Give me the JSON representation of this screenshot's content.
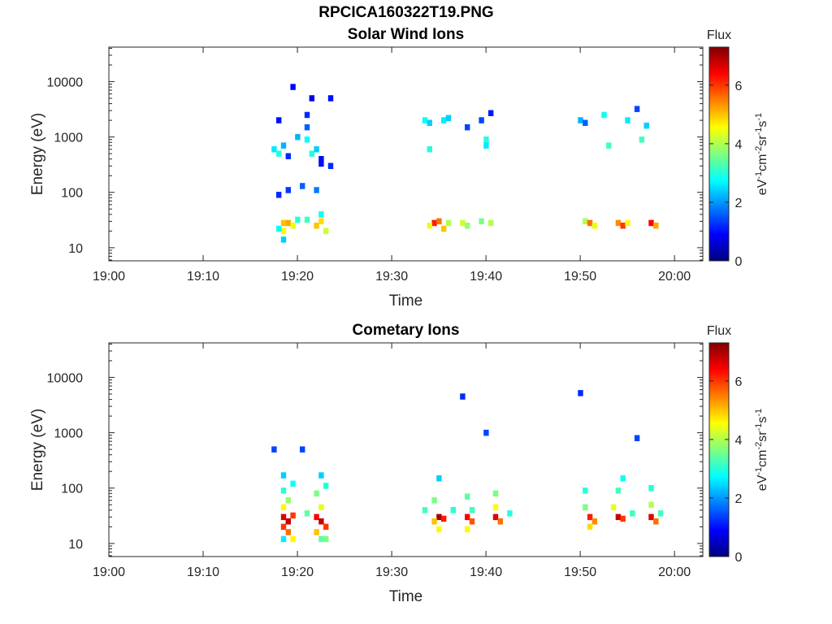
{
  "figure": {
    "filename": "RPCICA160322T19.PNG"
  },
  "chart_data": [
    {
      "type": "heatmap",
      "title": "Solar Wind Ions",
      "xlabel": "Time",
      "ylabel": "Energy (eV)",
      "x_ticks": [
        "19:00",
        "19:10",
        "19:20",
        "19:30",
        "19:40",
        "19:50",
        "20:00"
      ],
      "xlim": [
        "19:00",
        "20:03"
      ],
      "y_scale": "log",
      "y_ticks": [
        10,
        100,
        1000,
        10000
      ],
      "ylim": [
        5.8,
        42000
      ],
      "colorbar": {
        "title": "Flux",
        "label": "eV-1cm-2sr-1s-1",
        "ticks": [
          0,
          2,
          4,
          6
        ],
        "range": [
          0,
          7.3
        ],
        "colormap": "jet"
      },
      "cells": [
        {
          "t": "19:18.5",
          "e": 20,
          "v": 4.6
        },
        {
          "t": "19:18.5",
          "e": 28,
          "v": 5.0
        },
        {
          "t": "19:19.0",
          "e": 28,
          "v": 5.2
        },
        {
          "t": "19:19.5",
          "e": 25,
          "v": 4.4
        },
        {
          "t": "19:18.0",
          "e": 22,
          "v": 2.8
        },
        {
          "t": "19:18.5",
          "e": 14,
          "v": 2.4
        },
        {
          "t": "19:20.0",
          "e": 32,
          "v": 3.0
        },
        {
          "t": "19:21.0",
          "e": 32,
          "v": 3.2
        },
        {
          "t": "19:22.0",
          "e": 25,
          "v": 5.0
        },
        {
          "t": "19:22.5",
          "e": 30,
          "v": 4.8
        },
        {
          "t": "19:23.0",
          "e": 20,
          "v": 4.2
        },
        {
          "t": "19:22.5",
          "e": 40,
          "v": 2.8
        },
        {
          "t": "19:17.5",
          "e": 600,
          "v": 2.6
        },
        {
          "t": "19:18.0",
          "e": 500,
          "v": 3.0
        },
        {
          "t": "19:18.5",
          "e": 700,
          "v": 2.2
        },
        {
          "t": "19:19.0",
          "e": 450,
          "v": 1.2
        },
        {
          "t": "19:21.5",
          "e": 500,
          "v": 3.0
        },
        {
          "t": "19:22.0",
          "e": 600,
          "v": 2.4
        },
        {
          "t": "19:22.5",
          "e": 400,
          "v": 1.0
        },
        {
          "t": "19:20.0",
          "e": 1000,
          "v": 2.2
        },
        {
          "t": "19:21.0",
          "e": 900,
          "v": 2.8
        },
        {
          "t": "19:21.0",
          "e": 1500,
          "v": 1.6
        },
        {
          "t": "19:21.0",
          "e": 2500,
          "v": 1.2
        },
        {
          "t": "19:21.5",
          "e": 5000,
          "v": 0.7
        },
        {
          "t": "19:23.5",
          "e": 5000,
          "v": 1.0
        },
        {
          "t": "19:19.5",
          "e": 8000,
          "v": 0.9
        },
        {
          "t": "19:18.0",
          "e": 2000,
          "v": 1.0
        },
        {
          "t": "19:18.0",
          "e": 90,
          "v": 1.2
        },
        {
          "t": "19:19.0",
          "e": 110,
          "v": 1.3
        },
        {
          "t": "19:20.5",
          "e": 130,
          "v": 1.6
        },
        {
          "t": "19:22.0",
          "e": 110,
          "v": 1.8
        },
        {
          "t": "19:22.5",
          "e": 330,
          "v": 1.0
        },
        {
          "t": "19:23.5",
          "e": 300,
          "v": 1.2
        },
        {
          "t": "19:34.5",
          "e": 28,
          "v": 6.2
        },
        {
          "t": "19:35.0",
          "e": 30,
          "v": 5.6
        },
        {
          "t": "19:34.0",
          "e": 25,
          "v": 4.4
        },
        {
          "t": "19:35.5",
          "e": 22,
          "v": 5.0
        },
        {
          "t": "19:36.0",
          "e": 28,
          "v": 4.0
        },
        {
          "t": "19:37.5",
          "e": 28,
          "v": 4.2
        },
        {
          "t": "19:38.0",
          "e": 25,
          "v": 3.8
        },
        {
          "t": "19:39.5",
          "e": 30,
          "v": 3.6
        },
        {
          "t": "19:40.5",
          "e": 28,
          "v": 4.0
        },
        {
          "t": "19:33.5",
          "e": 2000,
          "v": 2.8
        },
        {
          "t": "19:34.0",
          "e": 1800,
          "v": 2.4
        },
        {
          "t": "19:35.5",
          "e": 2000,
          "v": 2.6
        },
        {
          "t": "19:36.0",
          "e": 2200,
          "v": 2.4
        },
        {
          "t": "19:38.0",
          "e": 1500,
          "v": 1.4
        },
        {
          "t": "19:40.0",
          "e": 900,
          "v": 3.0
        },
        {
          "t": "19:40.0",
          "e": 700,
          "v": 2.6
        },
        {
          "t": "19:34.0",
          "e": 600,
          "v": 3.0
        },
        {
          "t": "19:39.5",
          "e": 2000,
          "v": 1.4
        },
        {
          "t": "19:40.5",
          "e": 2700,
          "v": 1.1
        },
        {
          "t": "19:50.5",
          "e": 30,
          "v": 4.0
        },
        {
          "t": "19:51.0",
          "e": 28,
          "v": 5.6
        },
        {
          "t": "19:51.5",
          "e": 25,
          "v": 4.4
        },
        {
          "t": "19:54.0",
          "e": 28,
          "v": 5.4
        },
        {
          "t": "19:54.5",
          "e": 25,
          "v": 6.0
        },
        {
          "t": "19:55.0",
          "e": 28,
          "v": 4.6
        },
        {
          "t": "19:57.5",
          "e": 28,
          "v": 6.4
        },
        {
          "t": "19:58.0",
          "e": 25,
          "v": 5.2
        },
        {
          "t": "19:50.0",
          "e": 2000,
          "v": 2.2
        },
        {
          "t": "19:50.5",
          "e": 1800,
          "v": 1.6
        },
        {
          "t": "19:52.5",
          "e": 2500,
          "v": 2.8
        },
        {
          "t": "19:53.0",
          "e": 700,
          "v": 3.2
        },
        {
          "t": "19:55.0",
          "e": 2000,
          "v": 2.6
        },
        {
          "t": "19:56.5",
          "e": 900,
          "v": 3.2
        },
        {
          "t": "19:57.0",
          "e": 1600,
          "v": 2.4
        },
        {
          "t": "19:56.0",
          "e": 3200,
          "v": 1.4
        }
      ]
    },
    {
      "type": "heatmap",
      "title": "Cometary Ions",
      "xlabel": "Time",
      "ylabel": "Energy (eV)",
      "x_ticks": [
        "19:00",
        "19:10",
        "19:20",
        "19:30",
        "19:40",
        "19:50",
        "20:00"
      ],
      "xlim": [
        "19:00",
        "20:03"
      ],
      "y_scale": "log",
      "y_ticks": [
        10,
        100,
        1000,
        10000
      ],
      "ylim": [
        5.8,
        42000
      ],
      "colorbar": {
        "title": "Flux",
        "label": "eV-1cm-2sr-1s-1",
        "ticks": [
          0,
          2,
          4,
          6
        ],
        "range": [
          0,
          7.3
        ],
        "colormap": "jet"
      },
      "cells": [
        {
          "t": "19:18.5",
          "e": 30,
          "v": 6.6
        },
        {
          "t": "19:19.0",
          "e": 25,
          "v": 6.8
        },
        {
          "t": "19:19.5",
          "e": 32,
          "v": 6.0
        },
        {
          "t": "19:18.5",
          "e": 20,
          "v": 6.0
        },
        {
          "t": "19:19.0",
          "e": 16,
          "v": 5.6
        },
        {
          "t": "19:18.5",
          "e": 12,
          "v": 2.6
        },
        {
          "t": "19:19.5",
          "e": 12,
          "v": 4.6
        },
        {
          "t": "19:18.5",
          "e": 45,
          "v": 4.6
        },
        {
          "t": "19:19.0",
          "e": 60,
          "v": 3.8
        },
        {
          "t": "19:18.5",
          "e": 90,
          "v": 3.0
        },
        {
          "t": "19:19.5",
          "e": 120,
          "v": 2.8
        },
        {
          "t": "19:18.5",
          "e": 170,
          "v": 2.4
        },
        {
          "t": "19:22.0",
          "e": 30,
          "v": 6.4
        },
        {
          "t": "19:22.5",
          "e": 25,
          "v": 6.8
        },
        {
          "t": "19:23.0",
          "e": 20,
          "v": 6.0
        },
        {
          "t": "19:22.0",
          "e": 16,
          "v": 5.0
        },
        {
          "t": "19:22.5",
          "e": 12,
          "v": 3.4
        },
        {
          "t": "19:23.0",
          "e": 12,
          "v": 3.6
        },
        {
          "t": "19:22.5",
          "e": 45,
          "v": 4.4
        },
        {
          "t": "19:22.0",
          "e": 80,
          "v": 3.6
        },
        {
          "t": "19:23.0",
          "e": 110,
          "v": 3.0
        },
        {
          "t": "19:22.5",
          "e": 170,
          "v": 2.4
        },
        {
          "t": "19:21.0",
          "e": 35,
          "v": 3.4
        },
        {
          "t": "19:17.5",
          "e": 500,
          "v": 1.4
        },
        {
          "t": "19:20.5",
          "e": 500,
          "v": 1.4
        },
        {
          "t": "19:35.0",
          "e": 30,
          "v": 7.0
        },
        {
          "t": "19:35.5",
          "e": 28,
          "v": 6.2
        },
        {
          "t": "19:34.5",
          "e": 25,
          "v": 5.0
        },
        {
          "t": "19:35.0",
          "e": 18,
          "v": 4.6
        },
        {
          "t": "19:34.5",
          "e": 60,
          "v": 3.6
        },
        {
          "t": "19:35.0",
          "e": 150,
          "v": 2.4
        },
        {
          "t": "19:36.5",
          "e": 40,
          "v": 3.0
        },
        {
          "t": "19:38.0",
          "e": 30,
          "v": 6.4
        },
        {
          "t": "19:38.5",
          "e": 25,
          "v": 5.8
        },
        {
          "t": "19:38.0",
          "e": 18,
          "v": 4.6
        },
        {
          "t": "19:38.0",
          "e": 70,
          "v": 3.4
        },
        {
          "t": "19:38.5",
          "e": 40,
          "v": 3.2
        },
        {
          "t": "19:41.0",
          "e": 30,
          "v": 6.6
        },
        {
          "t": "19:41.5",
          "e": 25,
          "v": 5.6
        },
        {
          "t": "19:41.0",
          "e": 45,
          "v": 4.6
        },
        {
          "t": "19:41.0",
          "e": 80,
          "v": 3.6
        },
        {
          "t": "19:42.5",
          "e": 35,
          "v": 3.0
        },
        {
          "t": "19:40.0",
          "e": 1000,
          "v": 1.4
        },
        {
          "t": "19:37.5",
          "e": 4500,
          "v": 1.2
        },
        {
          "t": "19:33.5",
          "e": 40,
          "v": 3.2
        },
        {
          "t": "19:51.0",
          "e": 30,
          "v": 6.2
        },
        {
          "t": "19:51.5",
          "e": 25,
          "v": 5.4
        },
        {
          "t": "19:51.0",
          "e": 20,
          "v": 4.8
        },
        {
          "t": "19:50.5",
          "e": 45,
          "v": 3.6
        },
        {
          "t": "19:50.5",
          "e": 90,
          "v": 3.0
        },
        {
          "t": "19:54.0",
          "e": 30,
          "v": 6.8
        },
        {
          "t": "19:54.5",
          "e": 28,
          "v": 6.0
        },
        {
          "t": "19:53.5",
          "e": 45,
          "v": 4.4
        },
        {
          "t": "19:54.0",
          "e": 90,
          "v": 3.2
        },
        {
          "t": "19:54.5",
          "e": 150,
          "v": 2.8
        },
        {
          "t": "19:55.5",
          "e": 35,
          "v": 3.2
        },
        {
          "t": "19:57.5",
          "e": 30,
          "v": 6.6
        },
        {
          "t": "19:58.0",
          "e": 25,
          "v": 5.6
        },
        {
          "t": "19:57.5",
          "e": 50,
          "v": 4.0
        },
        {
          "t": "19:57.5",
          "e": 100,
          "v": 3.0
        },
        {
          "t": "19:56.0",
          "e": 800,
          "v": 1.4
        },
        {
          "t": "19:50.0",
          "e": 5200,
          "v": 1.2
        },
        {
          "t": "19:58.5",
          "e": 35,
          "v": 3.2
        }
      ]
    }
  ]
}
